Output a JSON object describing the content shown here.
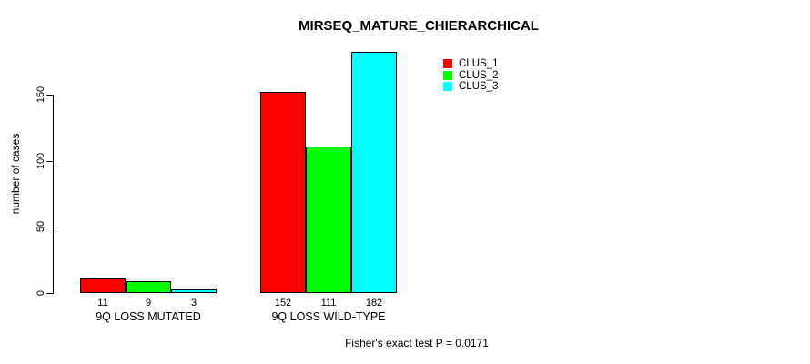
{
  "chart_data": {
    "type": "bar",
    "title": "MIRSEQ_MATURE_CHIERARCHICAL",
    "ylabel": "number of cases",
    "xlabel": "",
    "ylim": [
      0,
      150
    ],
    "yticks": [
      0,
      50,
      100,
      150
    ],
    "categories": [
      "9Q LOSS MUTATED",
      "9Q LOSS WILD-TYPE"
    ],
    "series": [
      {
        "name": "CLUS_1",
        "color": "#ff0000",
        "values": [
          11,
          152
        ]
      },
      {
        "name": "CLUS_2",
        "color": "#00ff00",
        "values": [
          9,
          111
        ]
      },
      {
        "name": "CLUS_3",
        "color": "#00ffff",
        "values": [
          3,
          182
        ]
      }
    ],
    "bar_value_labels": [
      [
        11,
        9,
        3
      ],
      [
        152,
        111,
        182
      ]
    ],
    "annotation": "Fisher's exact test P = 0.0171",
    "legend_position": "top-right",
    "grid": false,
    "axis_color": "#000000",
    "bar_border_color": "#000000",
    "background_color": "#ffffff"
  }
}
